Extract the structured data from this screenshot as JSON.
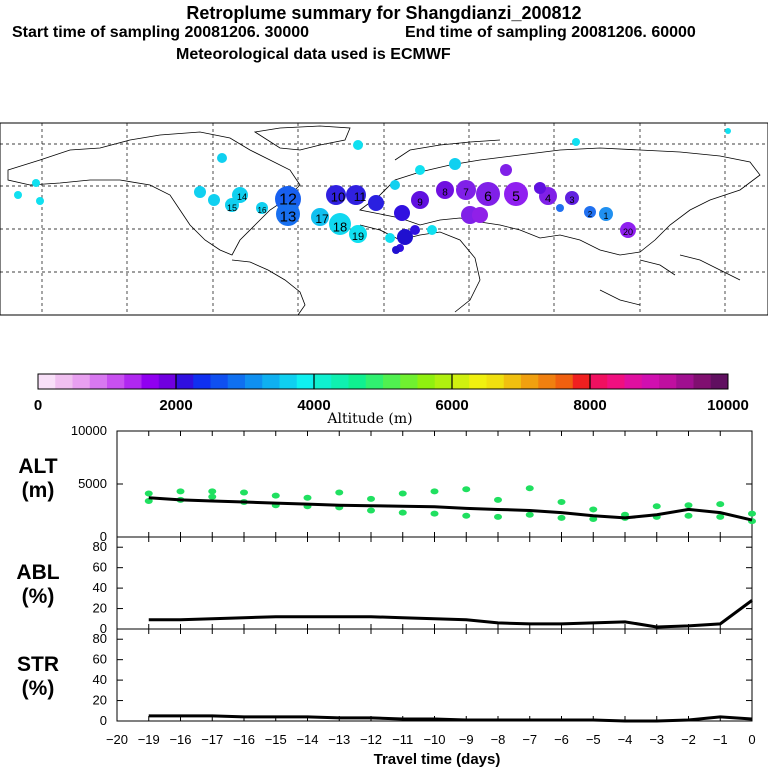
{
  "header": {
    "title": "Retroplume summary for Shangdianzi_200812",
    "start": "Start time of sampling 20081206. 30000",
    "end": "End time of sampling 20081206. 60000",
    "met": "Meteorological data used is ECMWF"
  },
  "colorbar": {
    "ticks": [
      "0",
      "2000",
      "4000",
      "6000",
      "8000",
      "10000"
    ],
    "label": "Altitude (m)"
  },
  "map_labels": [
    {
      "text": "12"
    },
    {
      "text": "13"
    },
    {
      "text": "17"
    },
    {
      "text": "18"
    },
    {
      "text": "19"
    },
    {
      "text": "10"
    },
    {
      "text": "11"
    },
    {
      "text": "14"
    },
    {
      "text": "15"
    },
    {
      "text": "16"
    },
    {
      "text": "9"
    },
    {
      "text": "8"
    },
    {
      "text": "7"
    },
    {
      "text": "6"
    },
    {
      "text": "5"
    },
    {
      "text": "4"
    },
    {
      "text": "3"
    },
    {
      "text": "2"
    },
    {
      "text": "1"
    },
    {
      "text": "20"
    }
  ],
  "panels": {
    "alt": {
      "label1": "ALT",
      "label2": "(m)",
      "yticks": [
        "10000",
        "5000",
        "0"
      ]
    },
    "abl": {
      "label1": "ABL",
      "label2": "(%)",
      "yticks": [
        "80",
        "60",
        "40",
        "20",
        "0"
      ]
    },
    "str": {
      "label1": "STR",
      "label2": "(%)",
      "yticks": [
        "80",
        "60",
        "40",
        "20",
        "0"
      ]
    }
  },
  "xaxis": {
    "ticks": [
      "−20",
      "−19",
      "−16",
      "−17",
      "−16",
      "−15",
      "−14",
      "−13",
      "−12",
      "−11",
      "−10",
      "−9",
      "−8",
      "−7",
      "−6",
      "−5",
      "−4",
      "−3",
      "−2",
      "−1",
      "0"
    ],
    "label": "Travel time (days)"
  },
  "chart_data": [
    {
      "type": "line",
      "title": "ALT (m)",
      "xlabel": "Travel time (days)",
      "ylabel": "ALT (m)",
      "xlim": [
        -20,
        0
      ],
      "ylim": [
        0,
        10000
      ],
      "x": [
        -19,
        -18,
        -17,
        -16,
        -15,
        -14,
        -13,
        -12,
        -11,
        -10,
        -9,
        -8,
        -7,
        -6,
        -5,
        -4,
        -3,
        -2,
        -1,
        0
      ],
      "series": [
        {
          "name": "mean altitude",
          "values": [
            3700,
            3500,
            3400,
            3300,
            3200,
            3100,
            3000,
            2950,
            2900,
            2850,
            2700,
            2600,
            2500,
            2300,
            2000,
            1800,
            2100,
            2600,
            2300,
            1600
          ]
        }
      ],
      "scatter": [
        {
          "x": -19,
          "y": 3400
        },
        {
          "x": -19,
          "y": 4100
        },
        {
          "x": -18,
          "y": 3500
        },
        {
          "x": -18,
          "y": 4300
        },
        {
          "x": -17,
          "y": 3800
        },
        {
          "x": -17,
          "y": 4300
        },
        {
          "x": -16,
          "y": 3300
        },
        {
          "x": -16,
          "y": 4200
        },
        {
          "x": -15,
          "y": 3000
        },
        {
          "x": -15,
          "y": 3900
        },
        {
          "x": -14,
          "y": 2900
        },
        {
          "x": -14,
          "y": 3700
        },
        {
          "x": -13,
          "y": 2800
        },
        {
          "x": -13,
          "y": 4200
        },
        {
          "x": -12,
          "y": 2500
        },
        {
          "x": -12,
          "y": 3600
        },
        {
          "x": -11,
          "y": 2300
        },
        {
          "x": -11,
          "y": 4100
        },
        {
          "x": -10,
          "y": 2200
        },
        {
          "x": -10,
          "y": 4300
        },
        {
          "x": -9,
          "y": 2000
        },
        {
          "x": -9,
          "y": 4500
        },
        {
          "x": -8,
          "y": 1900
        },
        {
          "x": -8,
          "y": 3500
        },
        {
          "x": -7,
          "y": 2100
        },
        {
          "x": -7,
          "y": 4600
        },
        {
          "x": -6,
          "y": 1800
        },
        {
          "x": -6,
          "y": 3300
        },
        {
          "x": -5,
          "y": 1700
        },
        {
          "x": -5,
          "y": 2600
        },
        {
          "x": -4,
          "y": 1800
        },
        {
          "x": -4,
          "y": 2100
        },
        {
          "x": -3,
          "y": 1900
        },
        {
          "x": -3,
          "y": 2900
        },
        {
          "x": -2,
          "y": 2000
        },
        {
          "x": -2,
          "y": 3000
        },
        {
          "x": -1,
          "y": 1900
        },
        {
          "x": -1,
          "y": 3100
        },
        {
          "x": 0,
          "y": 1500
        },
        {
          "x": 0,
          "y": 2200
        }
      ]
    },
    {
      "type": "line",
      "title": "ABL (%)",
      "xlabel": "Travel time (days)",
      "ylabel": "ABL (%)",
      "xlim": [
        -20,
        0
      ],
      "ylim": [
        0,
        90
      ],
      "x": [
        -19,
        -18,
        -17,
        -16,
        -15,
        -14,
        -13,
        -12,
        -11,
        -10,
        -9,
        -8,
        -7,
        -6,
        -5,
        -4,
        -3,
        -2,
        -1,
        0
      ],
      "series": [
        {
          "name": "ABL fraction",
          "values": [
            9,
            9,
            10,
            11,
            12,
            12,
            12,
            12,
            11,
            10,
            9,
            6,
            5,
            5,
            6,
            7,
            2,
            3,
            5,
            28
          ]
        }
      ]
    },
    {
      "type": "line",
      "title": "STR (%)",
      "xlabel": "Travel time (days)",
      "ylabel": "STR (%)",
      "xlim": [
        -20,
        0
      ],
      "ylim": [
        0,
        90
      ],
      "x": [
        -19,
        -18,
        -17,
        -16,
        -15,
        -14,
        -13,
        -12,
        -11,
        -10,
        -9,
        -8,
        -7,
        -6,
        -5,
        -4,
        -3,
        -2,
        -1,
        0
      ],
      "series": [
        {
          "name": "STR fraction",
          "values": [
            5,
            5,
            5,
            4,
            4,
            4,
            3,
            3,
            2,
            2,
            1,
            1,
            1,
            1,
            1,
            0,
            0,
            1,
            4,
            2
          ]
        }
      ]
    }
  ]
}
